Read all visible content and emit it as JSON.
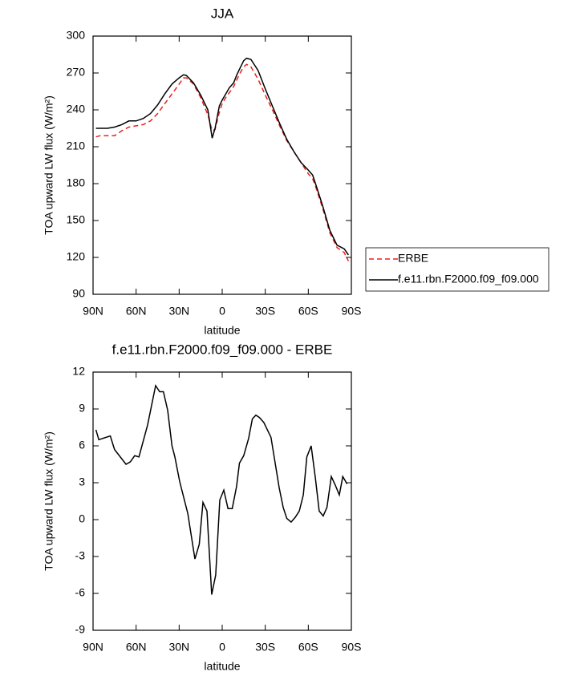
{
  "chart_data": [
    {
      "type": "line",
      "title": "JJA",
      "xlabel": "latitude",
      "ylabel": "TOA upward LW flux (W/m²)",
      "x": [
        88,
        85,
        80,
        75,
        70,
        65,
        60,
        55,
        50,
        45,
        40,
        35,
        30,
        27,
        25,
        20,
        15,
        10,
        7,
        5,
        2,
        0,
        -3,
        -5,
        -8,
        -10,
        -12,
        -15,
        -17,
        -20,
        -25,
        -30,
        -35,
        -40,
        -45,
        -50,
        -55,
        -60,
        -63,
        -65,
        -70,
        -75,
        -80,
        -85,
        -88
      ],
      "series": [
        {
          "name": "ERBE",
          "color": "#e8201c",
          "linestyle": "dashed",
          "values": [
            218,
            219,
            219,
            219,
            223,
            226,
            227,
            228,
            231,
            237,
            245,
            253,
            261,
            266,
            266,
            261,
            250,
            236,
            223,
            224,
            238,
            245,
            251,
            254,
            259,
            264,
            269,
            275,
            277,
            275,
            265,
            252,
            240,
            227,
            215,
            206,
            197,
            188,
            184,
            178,
            160,
            140,
            128,
            124,
            117
          ]
        },
        {
          "name": "f.e11.rbn.F2000.f09_f09.000",
          "color": "#000000",
          "linestyle": "solid",
          "values": [
            225,
            225,
            225,
            226,
            228,
            231,
            231,
            233,
            237,
            244,
            253,
            261,
            266,
            268.5,
            268,
            262,
            252,
            240,
            217,
            225,
            243,
            248,
            254,
            258,
            262,
            268,
            273,
            280,
            282,
            281,
            272,
            257,
            243,
            229,
            216,
            206,
            197,
            191,
            187,
            180,
            162,
            142,
            130,
            127,
            122
          ]
        }
      ],
      "xlim": [
        90,
        -90
      ],
      "xticks": [
        {
          "value": 90,
          "label": "90N"
        },
        {
          "value": 60,
          "label": "60N"
        },
        {
          "value": 30,
          "label": "30N"
        },
        0,
        {
          "value": -30,
          "label": "30S"
        },
        {
          "value": -60,
          "label": "60S"
        },
        {
          "value": -90,
          "label": "90S"
        }
      ],
      "ylim": [
        90,
        300
      ],
      "yticks": [
        90,
        120,
        150,
        180,
        210,
        240,
        270,
        300
      ],
      "legend": "right"
    },
    {
      "type": "line",
      "title": "f.e11.rbn.F2000.f09_f09.000 - ERBE",
      "xlabel": "latitude",
      "ylabel": "TOA upward LW flux (W/m²)",
      "x": [
        88,
        86,
        78,
        75,
        67,
        64,
        61,
        58,
        52,
        46.4,
        43.6,
        41,
        38,
        35,
        33,
        29.6,
        24,
        19,
        16,
        13.4,
        10.6,
        7.3,
        4.5,
        1.7,
        -1.1,
        -4,
        -7,
        -10,
        -12,
        -15,
        -18.4,
        -21,
        -23.5,
        -26,
        -29,
        -34,
        -39.7,
        -42.5,
        -45,
        -48,
        -51,
        -53.7,
        -56.5,
        -59,
        -62,
        -65,
        -67.6,
        -70.4,
        -73,
        -76,
        -78.8,
        -81.6,
        -84,
        -87
      ],
      "series": [
        {
          "color": "#000000",
          "values": [
            7.3,
            6.5,
            6.8,
            5.7,
            4.5,
            4.7,
            5.2,
            5.1,
            7.7,
            10.9,
            10.4,
            10.4,
            8.9,
            6.0,
            5.1,
            3.1,
            0.5,
            -3.2,
            -2.0,
            1.4,
            0.7,
            -6.1,
            -4.5,
            1.6,
            2.4,
            0.9,
            0.9,
            2.7,
            4.6,
            5.2,
            6.6,
            8.2,
            8.5,
            8.3,
            7.9,
            6.7,
            2.6,
            1.0,
            0.1,
            -0.2,
            0.2,
            0.7,
            2.0,
            5.1,
            6.0,
            3.3,
            0.7,
            0.3,
            1.0,
            3.5,
            2.8,
            2.0,
            3.5,
            2.9
          ]
        }
      ],
      "xlim": [
        90,
        -90
      ],
      "xticks": [
        {
          "value": 90,
          "label": "90N"
        },
        {
          "value": 60,
          "label": "60N"
        },
        {
          "value": 30,
          "label": "30N"
        },
        0,
        {
          "value": -30,
          "label": "30S"
        },
        {
          "value": -60,
          "label": "60S"
        },
        {
          "value": -90,
          "label": "90S"
        }
      ],
      "ylim": [
        -9,
        12
      ],
      "yticks": [
        12,
        9,
        6,
        3,
        0,
        -3,
        -6,
        -9
      ]
    }
  ]
}
